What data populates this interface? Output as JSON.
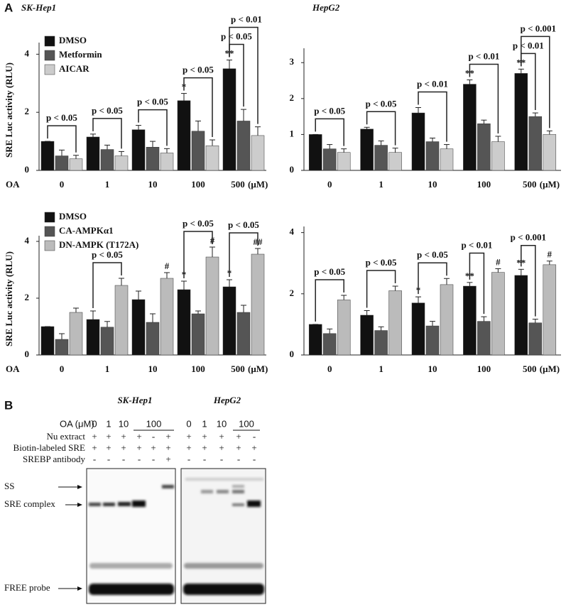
{
  "panel_labels": [
    "A",
    "B"
  ],
  "chart_data": [
    {
      "type": "bar",
      "title": "SK-Hep1",
      "y_label": "SRE  Luc activity (RLU)",
      "x_label": "OA",
      "x_unit": "(μM)",
      "categories": [
        "0",
        "1",
        "10",
        "100",
        "500"
      ],
      "ylim": [
        0,
        4.4
      ],
      "yticks": [
        0,
        2,
        4
      ],
      "legend": true,
      "series": [
        {
          "name": "DMSO",
          "color": "#111111",
          "values": [
            1.0,
            1.15,
            1.4,
            2.4,
            3.5
          ],
          "errors": [
            0,
            0.1,
            0.15,
            0.25,
            0.3
          ],
          "significance": [
            null,
            null,
            null,
            "*",
            "**"
          ]
        },
        {
          "name": "Metformin",
          "color": "#555555",
          "values": [
            0.5,
            0.72,
            0.8,
            1.35,
            1.7
          ],
          "errors": [
            0.2,
            0.15,
            0.2,
            0.35,
            0.4
          ],
          "significance": [
            null,
            null,
            null,
            null,
            null
          ]
        },
        {
          "name": "AICAR",
          "color": "#cccccc",
          "values": [
            0.4,
            0.5,
            0.6,
            0.85,
            1.2
          ],
          "errors": [
            0.12,
            0.15,
            0.15,
            0.2,
            0.3
          ],
          "significance": [
            null,
            null,
            null,
            null,
            null
          ]
        }
      ],
      "annotations": [
        {
          "text": "p < 0.05",
          "category": 0,
          "series": [
            0,
            2
          ]
        },
        {
          "text": "p < 0.05",
          "category": 1,
          "series": [
            0,
            2
          ]
        },
        {
          "text": "p < 0.05",
          "category": 2,
          "series": [
            0,
            2
          ]
        },
        {
          "text": "p < 0.05",
          "category": 3,
          "series": [
            0,
            2
          ]
        },
        {
          "text": "p < 0.05",
          "category": 4,
          "series": [
            0,
            1
          ]
        },
        {
          "text": "p < 0.01",
          "category": 4,
          "series": [
            0,
            2
          ]
        }
      ]
    },
    {
      "type": "bar",
      "title": "HepG2",
      "x_unit": "(μM)",
      "categories": [
        "0",
        "1",
        "10",
        "100",
        "500"
      ],
      "ylim": [
        0,
        3.4
      ],
      "yticks": [
        0,
        1,
        2,
        3
      ],
      "legend": false,
      "series": [
        {
          "name": "DMSO",
          "color": "#111111",
          "values": [
            1.0,
            1.15,
            1.6,
            2.4,
            2.7
          ],
          "errors": [
            0,
            0.05,
            0.15,
            0.12,
            0.12
          ],
          "significance": [
            null,
            null,
            null,
            "**",
            "**"
          ]
        },
        {
          "name": "Metformin",
          "color": "#555555",
          "values": [
            0.6,
            0.7,
            0.8,
            1.3,
            1.5
          ],
          "errors": [
            0.12,
            0.12,
            0.1,
            0.1,
            0.1
          ],
          "significance": [
            null,
            null,
            null,
            null,
            null
          ]
        },
        {
          "name": "AICAR",
          "color": "#cccccc",
          "values": [
            0.5,
            0.5,
            0.6,
            0.8,
            1.0
          ],
          "errors": [
            0.1,
            0.12,
            0.12,
            0.15,
            0.1
          ],
          "significance": [
            null,
            null,
            null,
            null,
            null
          ]
        }
      ],
      "annotations": [
        {
          "text": "p < 0.05",
          "category": 0,
          "series": [
            0,
            2
          ]
        },
        {
          "text": "p < 0.05",
          "category": 1,
          "series": [
            0,
            2
          ]
        },
        {
          "text": "p < 0.01",
          "category": 2,
          "series": [
            0,
            2
          ]
        },
        {
          "text": "p < 0.01",
          "category": 3,
          "series": [
            0,
            2
          ]
        },
        {
          "text": "p < 0.01",
          "category": 4,
          "series": [
            0,
            1
          ]
        },
        {
          "text": "p < 0.001",
          "category": 4,
          "series": [
            0,
            2
          ]
        }
      ]
    },
    {
      "type": "bar",
      "y_label": "SRE  Luc activity (RLU)",
      "x_label": "OA",
      "x_unit": "(μM)",
      "categories": [
        "0",
        "1",
        "10",
        "100",
        "500"
      ],
      "ylim": [
        0,
        4.2
      ],
      "yticks": [
        0,
        2,
        4
      ],
      "legend": true,
      "series": [
        {
          "name": "DMSO",
          "color": "#111111",
          "values": [
            1.0,
            1.25,
            1.95,
            2.3,
            2.4
          ],
          "errors": [
            0,
            0.3,
            0.3,
            0.3,
            0.25
          ],
          "significance": [
            null,
            null,
            null,
            "*",
            "*"
          ]
        },
        {
          "name": "CA-AMPKα1",
          "color": "#555555",
          "values": [
            0.55,
            0.98,
            1.15,
            1.45,
            1.5
          ],
          "errors": [
            0.2,
            0.2,
            0.3,
            0.1,
            0.25
          ],
          "significance": [
            null,
            null,
            null,
            null,
            null
          ]
        },
        {
          "name": "DN-AMPK (T172A)",
          "color": "#bbbbbb",
          "values": [
            1.5,
            2.45,
            2.7,
            3.45,
            3.55
          ],
          "errors": [
            0.15,
            0.25,
            0.2,
            0.35,
            0.2
          ],
          "significance": [
            null,
            null,
            "#",
            "#",
            "##"
          ]
        }
      ],
      "annotations": [
        {
          "text": "p < 0.05",
          "category": 1,
          "series": [
            0,
            2
          ]
        },
        {
          "text": "p < 0.05",
          "category": 3,
          "series": [
            0,
            2
          ]
        },
        {
          "text": "p < 0.05",
          "category": 4,
          "series": [
            0,
            2
          ]
        }
      ]
    },
    {
      "type": "bar",
      "x_unit": "(μM)",
      "categories": [
        "0",
        "1",
        "10",
        "100",
        "500"
      ],
      "ylim": [
        0,
        4.2
      ],
      "yticks": [
        0,
        2,
        4
      ],
      "legend": false,
      "series": [
        {
          "name": "DMSO",
          "color": "#111111",
          "values": [
            1.0,
            1.3,
            1.7,
            2.25,
            2.6
          ],
          "errors": [
            0,
            0.15,
            0.2,
            0.12,
            0.2
          ],
          "significance": [
            null,
            null,
            "*",
            "**",
            "**"
          ]
        },
        {
          "name": "CA-AMPKα1",
          "color": "#555555",
          "values": [
            0.7,
            0.8,
            0.95,
            1.1,
            1.05
          ],
          "errors": [
            0.15,
            0.12,
            0.15,
            0.15,
            0.12
          ],
          "significance": [
            null,
            null,
            null,
            null,
            null
          ]
        },
        {
          "name": "DN-AMPK (T172A)",
          "color": "#bbbbbb",
          "values": [
            1.8,
            2.1,
            2.3,
            2.7,
            2.95
          ],
          "errors": [
            0.15,
            0.15,
            0.2,
            0.12,
            0.12
          ],
          "significance": [
            null,
            null,
            null,
            "#",
            "#"
          ]
        }
      ],
      "annotations": [
        {
          "text": "p < 0.05",
          "category": 0,
          "series": [
            0,
            2
          ]
        },
        {
          "text": "p < 0.05",
          "category": 1,
          "series": [
            0,
            2
          ]
        },
        {
          "text": "p < 0.05",
          "category": 2,
          "series": [
            0,
            2
          ]
        },
        {
          "text": "p < 0.01",
          "category": 3,
          "series": [
            0,
            1
          ]
        },
        {
          "text": "p < 0.001",
          "category": 4,
          "series": [
            0,
            1
          ]
        }
      ]
    }
  ],
  "gel": {
    "oa_label": "OA (μM)",
    "row_labels": [
      "Nu extract",
      "Biotin-labeled SRE",
      "SREBP antibody"
    ],
    "band_labels": [
      "SS",
      "SRE complex",
      "FREE probe"
    ],
    "groups": [
      {
        "title": "SK-Hep1",
        "oa": [
          "0",
          "1",
          "10",
          "100"
        ],
        "rows": [
          [
            "+",
            "+",
            "+",
            "+",
            "-",
            "+"
          ],
          [
            "+",
            "+",
            "+",
            "+",
            "+",
            "+"
          ],
          [
            "-",
            "-",
            "-",
            "-",
            "-",
            "+"
          ]
        ]
      },
      {
        "title": "HepG2",
        "oa": [
          "0",
          "1",
          "10",
          "100"
        ],
        "rows": [
          [
            "+",
            "+",
            "+",
            "+",
            "-"
          ],
          [
            "+",
            "+",
            "+",
            "+",
            "+"
          ],
          [
            "-",
            "-",
            "-",
            "-",
            "-"
          ]
        ]
      }
    ]
  }
}
